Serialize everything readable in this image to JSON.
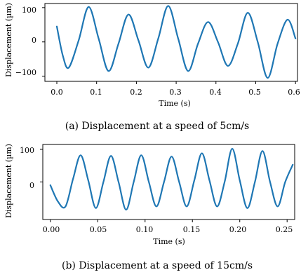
{
  "captions": [
    "(a) Displacement at a speed of 5cm/s",
    "(b) Displacement at a speed of 15cm/s"
  ],
  "colors": {
    "line": "#1f77b4",
    "axis": "#000000"
  },
  "chart_data": [
    {
      "type": "line",
      "title": "",
      "xlabel": "Time (s)",
      "ylabel": "Displacement (µm)",
      "xlim": [
        -0.03,
        0.605
      ],
      "ylim": [
        -115,
        112
      ],
      "x_ticks": [
        0.0,
        0.1,
        0.2,
        0.3,
        0.4,
        0.5,
        0.6
      ],
      "x_tick_labels": [
        "0.0",
        "0.1",
        "0.2",
        "0.3",
        "0.4",
        "0.5",
        "0.6"
      ],
      "y_ticks": [
        100,
        0,
        -100
      ],
      "y_tick_labels": [
        "100",
        "0",
        "−100"
      ],
      "grid": false,
      "series": [
        {
          "x": [
            0.0,
            0.015,
            0.03,
            0.055,
            0.08,
            0.105,
            0.13,
            0.155,
            0.18,
            0.205,
            0.23,
            0.255,
            0.28,
            0.305,
            0.33,
            0.355,
            0.38,
            0.405,
            0.43,
            0.455,
            0.48,
            0.505,
            0.53,
            0.555,
            0.58,
            0.6
          ],
          "y": [
            45,
            -40,
            -75,
            5,
            102,
            10,
            -85,
            -5,
            80,
            5,
            -75,
            10,
            105,
            10,
            -85,
            -5,
            58,
            0,
            -70,
            -5,
            85,
            0,
            -105,
            -5,
            65,
            10
          ]
        }
      ]
    },
    {
      "type": "line",
      "title": "",
      "xlabel": "Time (s)",
      "ylabel": "Displacement (µm)",
      "xlim": [
        -0.008,
        0.258
      ],
      "ylim": [
        -115,
        115
      ],
      "x_ticks": [
        0.0,
        0.05,
        0.1,
        0.15,
        0.2,
        0.25
      ],
      "x_tick_labels": [
        "0.00",
        "0.05",
        "0.10",
        "0.15",
        "0.20",
        "0.25"
      ],
      "y_ticks": [
        100,
        0
      ],
      "y_tick_labels": [
        "100",
        "0"
      ],
      "grid": false,
      "series": [
        {
          "x": [
            0.0,
            0.008,
            0.016,
            0.024,
            0.032,
            0.04,
            0.048,
            0.056,
            0.064,
            0.072,
            0.08,
            0.088,
            0.096,
            0.104,
            0.112,
            0.12,
            0.128,
            0.136,
            0.144,
            0.152,
            0.16,
            0.168,
            0.176,
            0.184,
            0.192,
            0.2,
            0.208,
            0.216,
            0.224,
            0.232,
            0.24,
            0.248,
            0.256
          ],
          "y": [
            -10,
            -60,
            -75,
            10,
            82,
            5,
            -80,
            0,
            80,
            0,
            -85,
            0,
            82,
            0,
            -75,
            0,
            78,
            0,
            -75,
            5,
            88,
            5,
            -75,
            0,
            102,
            5,
            -80,
            0,
            95,
            0,
            -75,
            0,
            53
          ]
        }
      ]
    }
  ]
}
